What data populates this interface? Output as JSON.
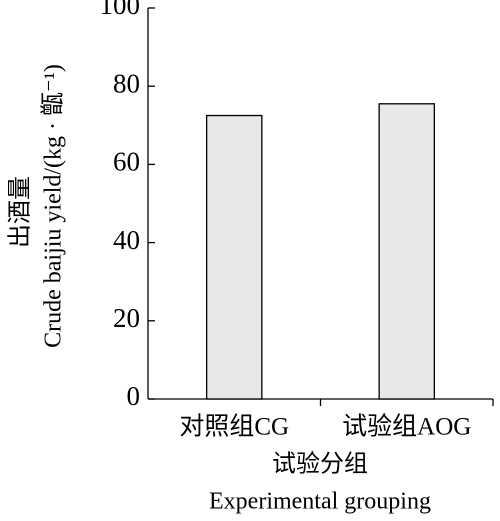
{
  "chart_data": {
    "type": "bar",
    "categories": [
      "对照组CG",
      "试验组AOG"
    ],
    "values": [
      72.5,
      75.5
    ],
    "color": "#e8e8e8",
    "ylim": [
      0,
      100
    ],
    "yticks": [
      0,
      20,
      40,
      60,
      80,
      100
    ],
    "y_label": [
      "出酒量",
      "Crude baijiu yield/(kg · 甑⁻¹)"
    ],
    "x_label": [
      "试验分组",
      "Experimental grouping"
    ]
  }
}
